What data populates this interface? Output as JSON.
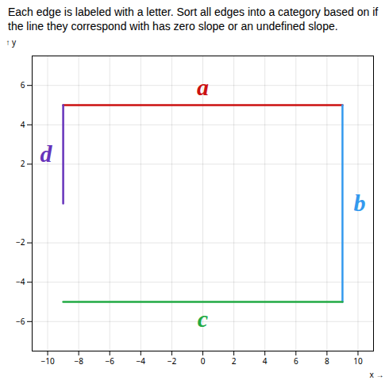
{
  "chart_data": {
    "type": "line",
    "title": "Each edge is labeled with a letter. Sort all edges into a category based on if the line they correspond with has zero slope or an undefined slope.",
    "x_label": "x",
    "y_label": "y",
    "xlim": [
      -11,
      11
    ],
    "ylim": [
      -7.5,
      7.5
    ],
    "xticks": [
      -10,
      -8,
      -6,
      -4,
      -2,
      0,
      2,
      4,
      6,
      8,
      10
    ],
    "yticks": [
      -6,
      -4,
      -2,
      2,
      4,
      6
    ],
    "grid": true,
    "series": [
      {
        "name": "a",
        "color": "#cc1111",
        "x": [
          -9,
          9
        ],
        "values": [
          5,
          5
        ]
      },
      {
        "name": "b",
        "color": "#3399ee",
        "x": [
          9,
          9
        ],
        "values": [
          5,
          -5
        ]
      },
      {
        "name": "c",
        "color": "#22aa44",
        "x": [
          -9,
          9
        ],
        "values": [
          -5,
          -5
        ]
      },
      {
        "name": "d",
        "color": "#6633bb",
        "x": [
          -9,
          -9
        ],
        "values": [
          5,
          0
        ]
      }
    ]
  }
}
